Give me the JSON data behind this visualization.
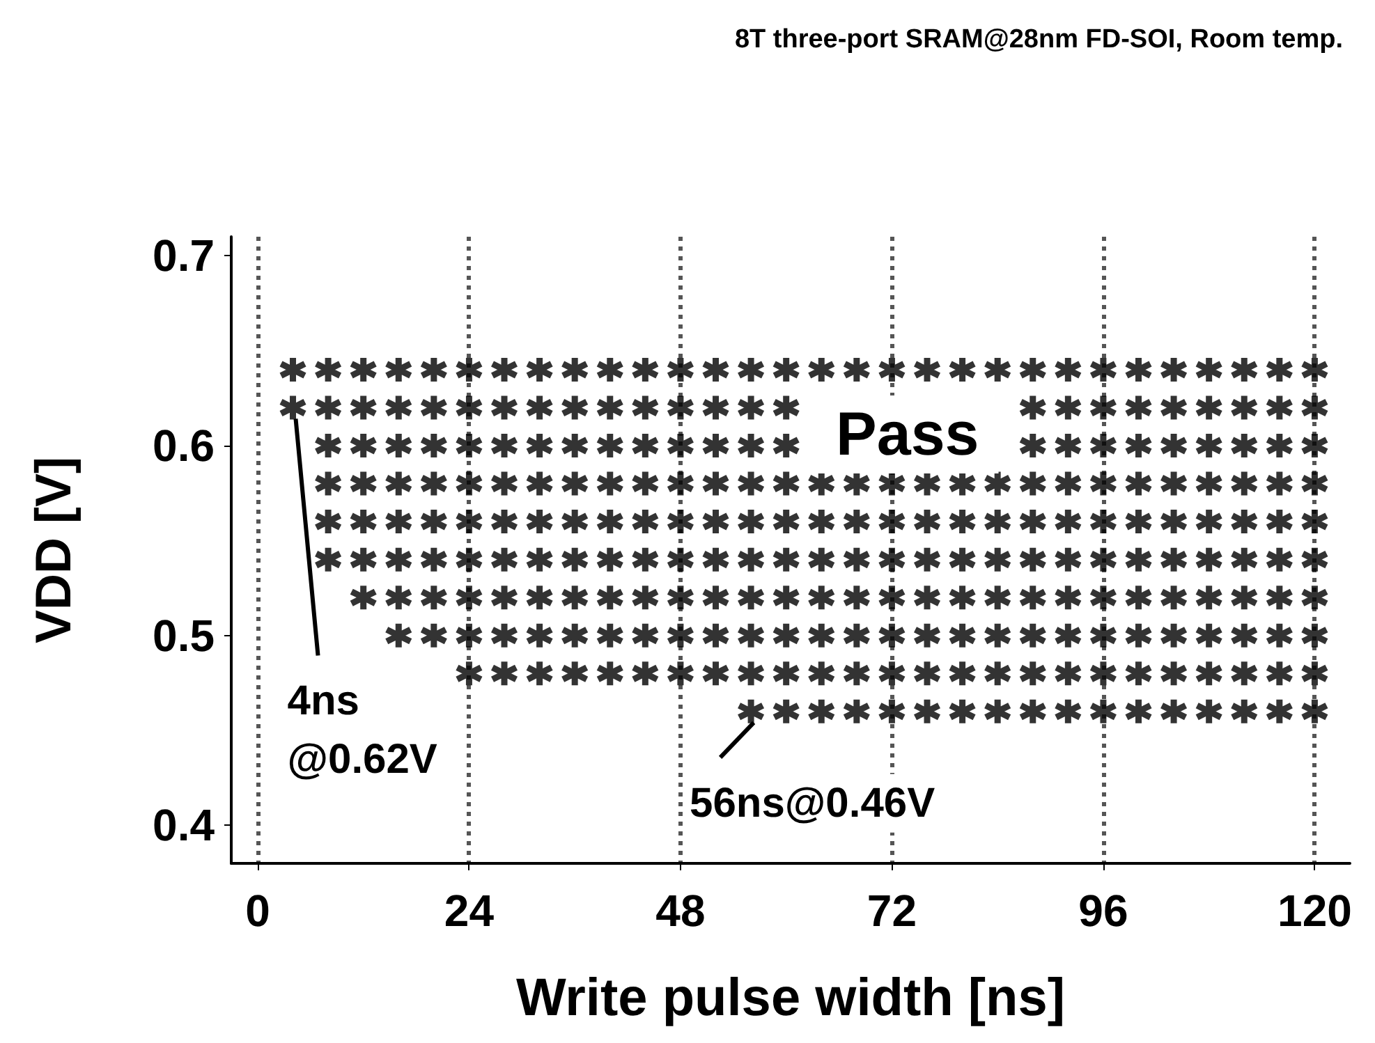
{
  "chart_data": {
    "type": "scatter",
    "title": "8T three-port SRAM@28nm FD-SOI, Room temp.",
    "xlabel": "Write pulse width [ns]",
    "ylabel": "VDD [V]",
    "xlim": [
      -3,
      124
    ],
    "xticks": [
      0,
      24,
      48,
      72,
      96,
      120
    ],
    "ylim": [
      0.38,
      0.71
    ],
    "yticks": [
      0.4,
      0.5,
      0.6,
      0.7
    ],
    "grid": "x",
    "marker": "cross",
    "annotations": [
      "Pass",
      {
        "text": "4ns\n@0.62V",
        "x": 4,
        "y": 0.62
      },
      {
        "text": "56ns@0.46V",
        "x": 56,
        "y": 0.46
      }
    ],
    "series": [
      {
        "color": "#000000",
        "x": [
          4,
          8,
          12,
          16,
          20,
          24,
          28,
          32,
          36,
          40,
          44,
          48,
          52,
          56,
          60,
          64,
          68,
          72,
          76,
          80,
          84,
          88,
          92,
          96,
          100,
          104,
          108,
          112,
          116,
          120
        ],
        "values": [
          0.64,
          0.64,
          0.64,
          0.64,
          0.64,
          0.64,
          0.64,
          0.64,
          0.64,
          0.64,
          0.64,
          0.64,
          0.64,
          0.64,
          0.64,
          0.64,
          0.64,
          0.64,
          0.64,
          0.64,
          0.64,
          0.64,
          0.64,
          0.64,
          0.64,
          0.64,
          0.64,
          0.64,
          0.64,
          0.64
        ]
      },
      {
        "color": "#000000",
        "x": [
          4,
          8,
          12,
          16,
          20,
          24,
          28,
          32,
          36,
          40,
          44,
          48,
          52,
          56,
          60,
          88,
          92,
          96,
          100,
          104,
          108,
          112,
          116,
          120
        ],
        "values": [
          0.62,
          0.62,
          0.62,
          0.62,
          0.62,
          0.62,
          0.62,
          0.62,
          0.62,
          0.62,
          0.62,
          0.62,
          0.62,
          0.62,
          0.62,
          0.62,
          0.62,
          0.62,
          0.62,
          0.62,
          0.62,
          0.62,
          0.62,
          0.62
        ]
      },
      {
        "color": "#000000",
        "x": [
          8,
          12,
          16,
          20,
          24,
          28,
          32,
          36,
          40,
          44,
          48,
          52,
          56,
          60,
          88,
          92,
          96,
          100,
          104,
          108,
          112,
          116,
          120
        ],
        "values": [
          0.6,
          0.6,
          0.6,
          0.6,
          0.6,
          0.6,
          0.6,
          0.6,
          0.6,
          0.6,
          0.6,
          0.6,
          0.6,
          0.6,
          0.6,
          0.6,
          0.6,
          0.6,
          0.6,
          0.6,
          0.6,
          0.6,
          0.6
        ]
      },
      {
        "color": "#000000",
        "x": [
          8,
          12,
          16,
          20,
          24,
          28,
          32,
          36,
          40,
          44,
          48,
          52,
          56,
          60,
          64,
          68,
          72,
          76,
          80,
          84,
          88,
          92,
          96,
          100,
          104,
          108,
          112,
          116,
          120
        ],
        "values": [
          0.58,
          0.58,
          0.58,
          0.58,
          0.58,
          0.58,
          0.58,
          0.58,
          0.58,
          0.58,
          0.58,
          0.58,
          0.58,
          0.58,
          0.58,
          0.58,
          0.58,
          0.58,
          0.58,
          0.58,
          0.58,
          0.58,
          0.58,
          0.58,
          0.58,
          0.58,
          0.58,
          0.58,
          0.58
        ]
      },
      {
        "color": "#000000",
        "x": [
          8,
          12,
          16,
          20,
          24,
          28,
          32,
          36,
          40,
          44,
          48,
          52,
          56,
          60,
          64,
          68,
          72,
          76,
          80,
          84,
          88,
          92,
          96,
          100,
          104,
          108,
          112,
          116,
          120
        ],
        "values": [
          0.56,
          0.56,
          0.56,
          0.56,
          0.56,
          0.56,
          0.56,
          0.56,
          0.56,
          0.56,
          0.56,
          0.56,
          0.56,
          0.56,
          0.56,
          0.56,
          0.56,
          0.56,
          0.56,
          0.56,
          0.56,
          0.56,
          0.56,
          0.56,
          0.56,
          0.56,
          0.56,
          0.56,
          0.56
        ]
      },
      {
        "color": "#000000",
        "x": [
          8,
          12,
          16,
          20,
          24,
          28,
          32,
          36,
          40,
          44,
          48,
          52,
          56,
          60,
          64,
          68,
          72,
          76,
          80,
          84,
          88,
          92,
          96,
          100,
          104,
          108,
          112,
          116,
          120
        ],
        "values": [
          0.54,
          0.54,
          0.54,
          0.54,
          0.54,
          0.54,
          0.54,
          0.54,
          0.54,
          0.54,
          0.54,
          0.54,
          0.54,
          0.54,
          0.54,
          0.54,
          0.54,
          0.54,
          0.54,
          0.54,
          0.54,
          0.54,
          0.54,
          0.54,
          0.54,
          0.54,
          0.54,
          0.54,
          0.54
        ]
      },
      {
        "color": "#000000",
        "x": [
          12,
          16,
          20,
          24,
          28,
          32,
          36,
          40,
          44,
          48,
          52,
          56,
          60,
          64,
          68,
          72,
          76,
          80,
          84,
          88,
          92,
          96,
          100,
          104,
          108,
          112,
          116,
          120
        ],
        "values": [
          0.52,
          0.52,
          0.52,
          0.52,
          0.52,
          0.52,
          0.52,
          0.52,
          0.52,
          0.52,
          0.52,
          0.52,
          0.52,
          0.52,
          0.52,
          0.52,
          0.52,
          0.52,
          0.52,
          0.52,
          0.52,
          0.52,
          0.52,
          0.52,
          0.52,
          0.52,
          0.52,
          0.52
        ]
      },
      {
        "color": "#000000",
        "x": [
          16,
          20,
          24,
          28,
          32,
          36,
          40,
          44,
          48,
          52,
          56,
          60,
          64,
          68,
          72,
          76,
          80,
          84,
          88,
          92,
          96,
          100,
          104,
          108,
          112,
          116,
          120
        ],
        "values": [
          0.5,
          0.5,
          0.5,
          0.5,
          0.5,
          0.5,
          0.5,
          0.5,
          0.5,
          0.5,
          0.5,
          0.5,
          0.5,
          0.5,
          0.5,
          0.5,
          0.5,
          0.5,
          0.5,
          0.5,
          0.5,
          0.5,
          0.5,
          0.5,
          0.5,
          0.5,
          0.5
        ]
      },
      {
        "color": "#000000",
        "x": [
          24,
          28,
          32,
          36,
          40,
          44,
          48,
          52,
          56,
          60,
          64,
          68,
          72,
          76,
          80,
          84,
          88,
          92,
          96,
          100,
          104,
          108,
          112,
          116,
          120
        ],
        "values": [
          0.48,
          0.48,
          0.48,
          0.48,
          0.48,
          0.48,
          0.48,
          0.48,
          0.48,
          0.48,
          0.48,
          0.48,
          0.48,
          0.48,
          0.48,
          0.48,
          0.48,
          0.48,
          0.48,
          0.48,
          0.48,
          0.48,
          0.48,
          0.48,
          0.48
        ]
      },
      {
        "color": "#000000",
        "x": [
          56,
          60,
          64,
          68,
          72,
          76,
          80,
          84,
          88,
          92,
          96,
          100,
          104,
          108,
          112,
          116,
          120
        ],
        "values": [
          0.46,
          0.46,
          0.46,
          0.46,
          0.46,
          0.46,
          0.46,
          0.46,
          0.46,
          0.46,
          0.46,
          0.46,
          0.46,
          0.46,
          0.46,
          0.46,
          0.46
        ]
      }
    ]
  }
}
